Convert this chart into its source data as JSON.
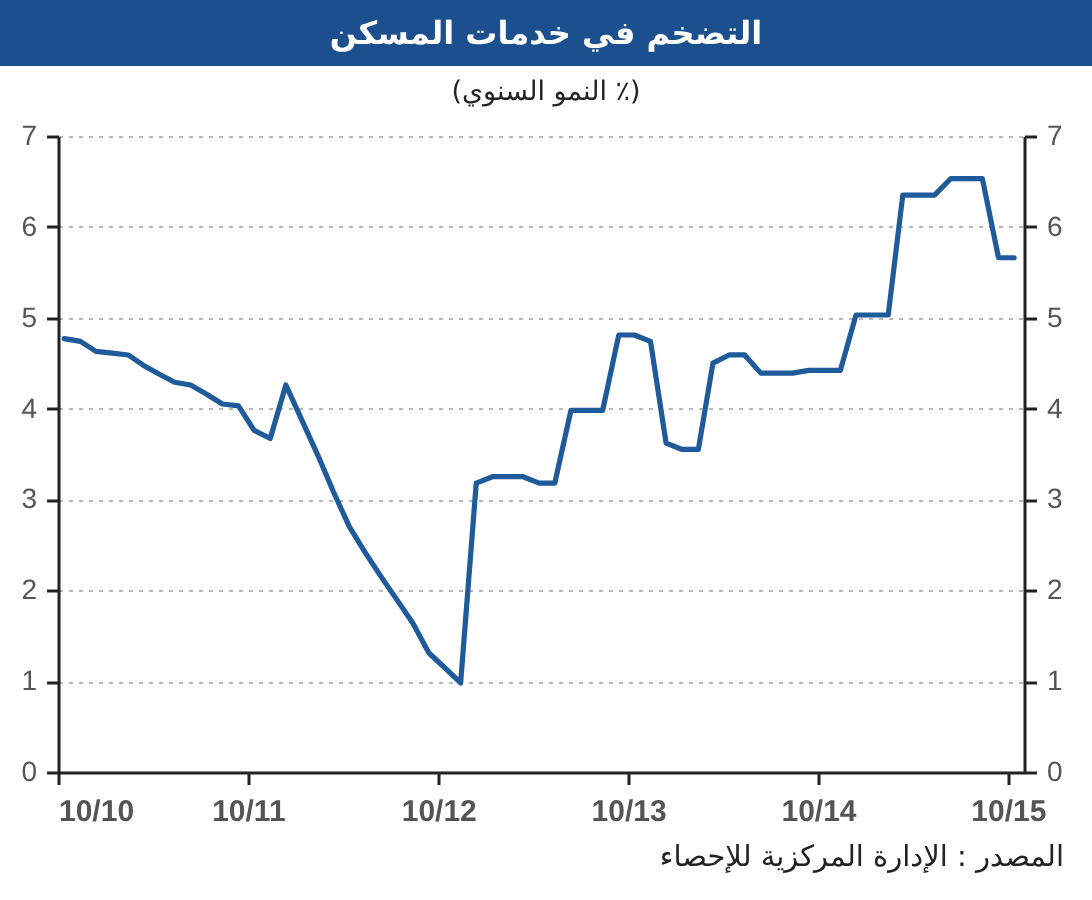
{
  "chart_data": {
    "type": "line",
    "title": "التضخم في خدمات المسكن",
    "subtitle": "(٪ النمو السنوي)",
    "x": [
      "2010-10-13",
      "2010-11-13",
      "2010-12-13",
      "2011-01-13",
      "2011-02-13",
      "2011-03-13",
      "2011-04-13",
      "2011-05-13",
      "2011-06-13",
      "2011-07-13",
      "2011-08-13",
      "2011-09-13",
      "2011-10-13",
      "2011-11-13",
      "2011-12-13",
      "2012-01-13",
      "2012-02-13",
      "2012-03-13",
      "2012-04-13",
      "2012-05-13",
      "2012-06-13",
      "2012-07-13",
      "2012-08-13",
      "2012-09-13",
      "2012-10-13",
      "2012-11-13",
      "2012-12-13",
      "2013-01-13",
      "2013-02-13",
      "2013-03-13",
      "2013-04-13",
      "2013-05-13",
      "2013-06-13",
      "2013-07-13",
      "2013-08-13",
      "2013-09-13",
      "2013-10-13",
      "2013-11-13",
      "2013-12-13",
      "2014-01-13",
      "2014-02-13",
      "2014-03-13",
      "2014-04-13",
      "2014-05-13",
      "2014-06-13",
      "2014-07-13",
      "2014-08-13",
      "2014-09-13",
      "2014-10-13",
      "2014-11-13",
      "2014-12-13",
      "2015-01-13",
      "2015-02-13",
      "2015-03-13",
      "2015-04-13",
      "2015-05-13",
      "2015-06-13",
      "2015-07-13",
      "2015-08-13",
      "2015-09-13",
      "2015-10-13"
    ],
    "series": [
      {
        "color": "#1f5a9b",
        "values": [
          4.77,
          4.74,
          4.63,
          4.61,
          4.59,
          4.48,
          4.38,
          4.29,
          4.26,
          4.16,
          4.05,
          4.03,
          3.76,
          3.67,
          4.26,
          3.87,
          3.48,
          3.09,
          2.7,
          2.42,
          2.15,
          1.9,
          1.64,
          1.31,
          1.15,
          0.98,
          3.18,
          3.25,
          3.25,
          3.25,
          3.18,
          3.18,
          3.98,
          3.98,
          3.98,
          4.81,
          4.81,
          4.74,
          3.62,
          3.55,
          3.55,
          4.5,
          4.59,
          4.59,
          4.39,
          4.39,
          4.39,
          4.42,
          4.42,
          4.42,
          5.03,
          5.03,
          5.03,
          6.35,
          6.35,
          6.35,
          6.53,
          6.53,
          6.53,
          5.66,
          5.66
        ]
      }
    ],
    "xlim": [
      "2010-10",
      "2015-11"
    ],
    "xticks": [
      {
        "value": "2010-10",
        "label": "10/10"
      },
      {
        "value": "2011-10",
        "label": "10/11"
      },
      {
        "value": "2012-10",
        "label": "10/12"
      },
      {
        "value": "2013-10",
        "label": "10/13"
      },
      {
        "value": "2014-10",
        "label": "10/14"
      },
      {
        "value": "2015-10",
        "label": "10/15"
      }
    ],
    "ylim": [
      0,
      7
    ],
    "yticks": [
      0,
      1,
      2,
      3,
      4,
      5,
      6,
      7
    ],
    "y2lim": [
      0,
      7
    ],
    "y2ticks": [
      0,
      1,
      2,
      3,
      4,
      5,
      6,
      7
    ],
    "grid": "y",
    "annotations": [
      "المصدر : الإدارة المركزية للإحصاء"
    ]
  }
}
